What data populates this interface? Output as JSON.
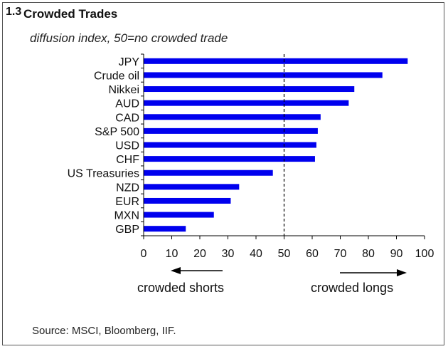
{
  "header": {
    "number": "1.3",
    "title": "Crowded Trades",
    "subtitle": "diffusion index, 50=no crowded trade"
  },
  "colors": {
    "bar": "#0000ee",
    "axis": "#000000"
  },
  "chart_data": {
    "type": "bar",
    "orientation": "horizontal",
    "categories": [
      "JPY",
      "Crude oil",
      "Nikkei",
      "AUD",
      "CAD",
      "S&P 500",
      "USD",
      "CHF",
      "US Treasuries",
      "NZD",
      "EUR",
      "MXN",
      "GBP"
    ],
    "values": [
      94,
      85,
      75,
      73,
      63,
      62,
      61.5,
      61,
      46,
      34,
      31,
      25,
      15
    ],
    "xlim": [
      0,
      100
    ],
    "xticks": [
      "0",
      "10",
      "20",
      "30",
      "40",
      "50",
      "60",
      "70",
      "80",
      "90",
      "100"
    ],
    "reference_line": {
      "x": 50,
      "style": "dashed"
    },
    "annotations": {
      "left": "crowded shorts",
      "right": "crowded longs"
    },
    "grid": false,
    "legend": "none"
  },
  "footer": {
    "source": "Source:  MSCI, Bloomberg, IIF."
  }
}
